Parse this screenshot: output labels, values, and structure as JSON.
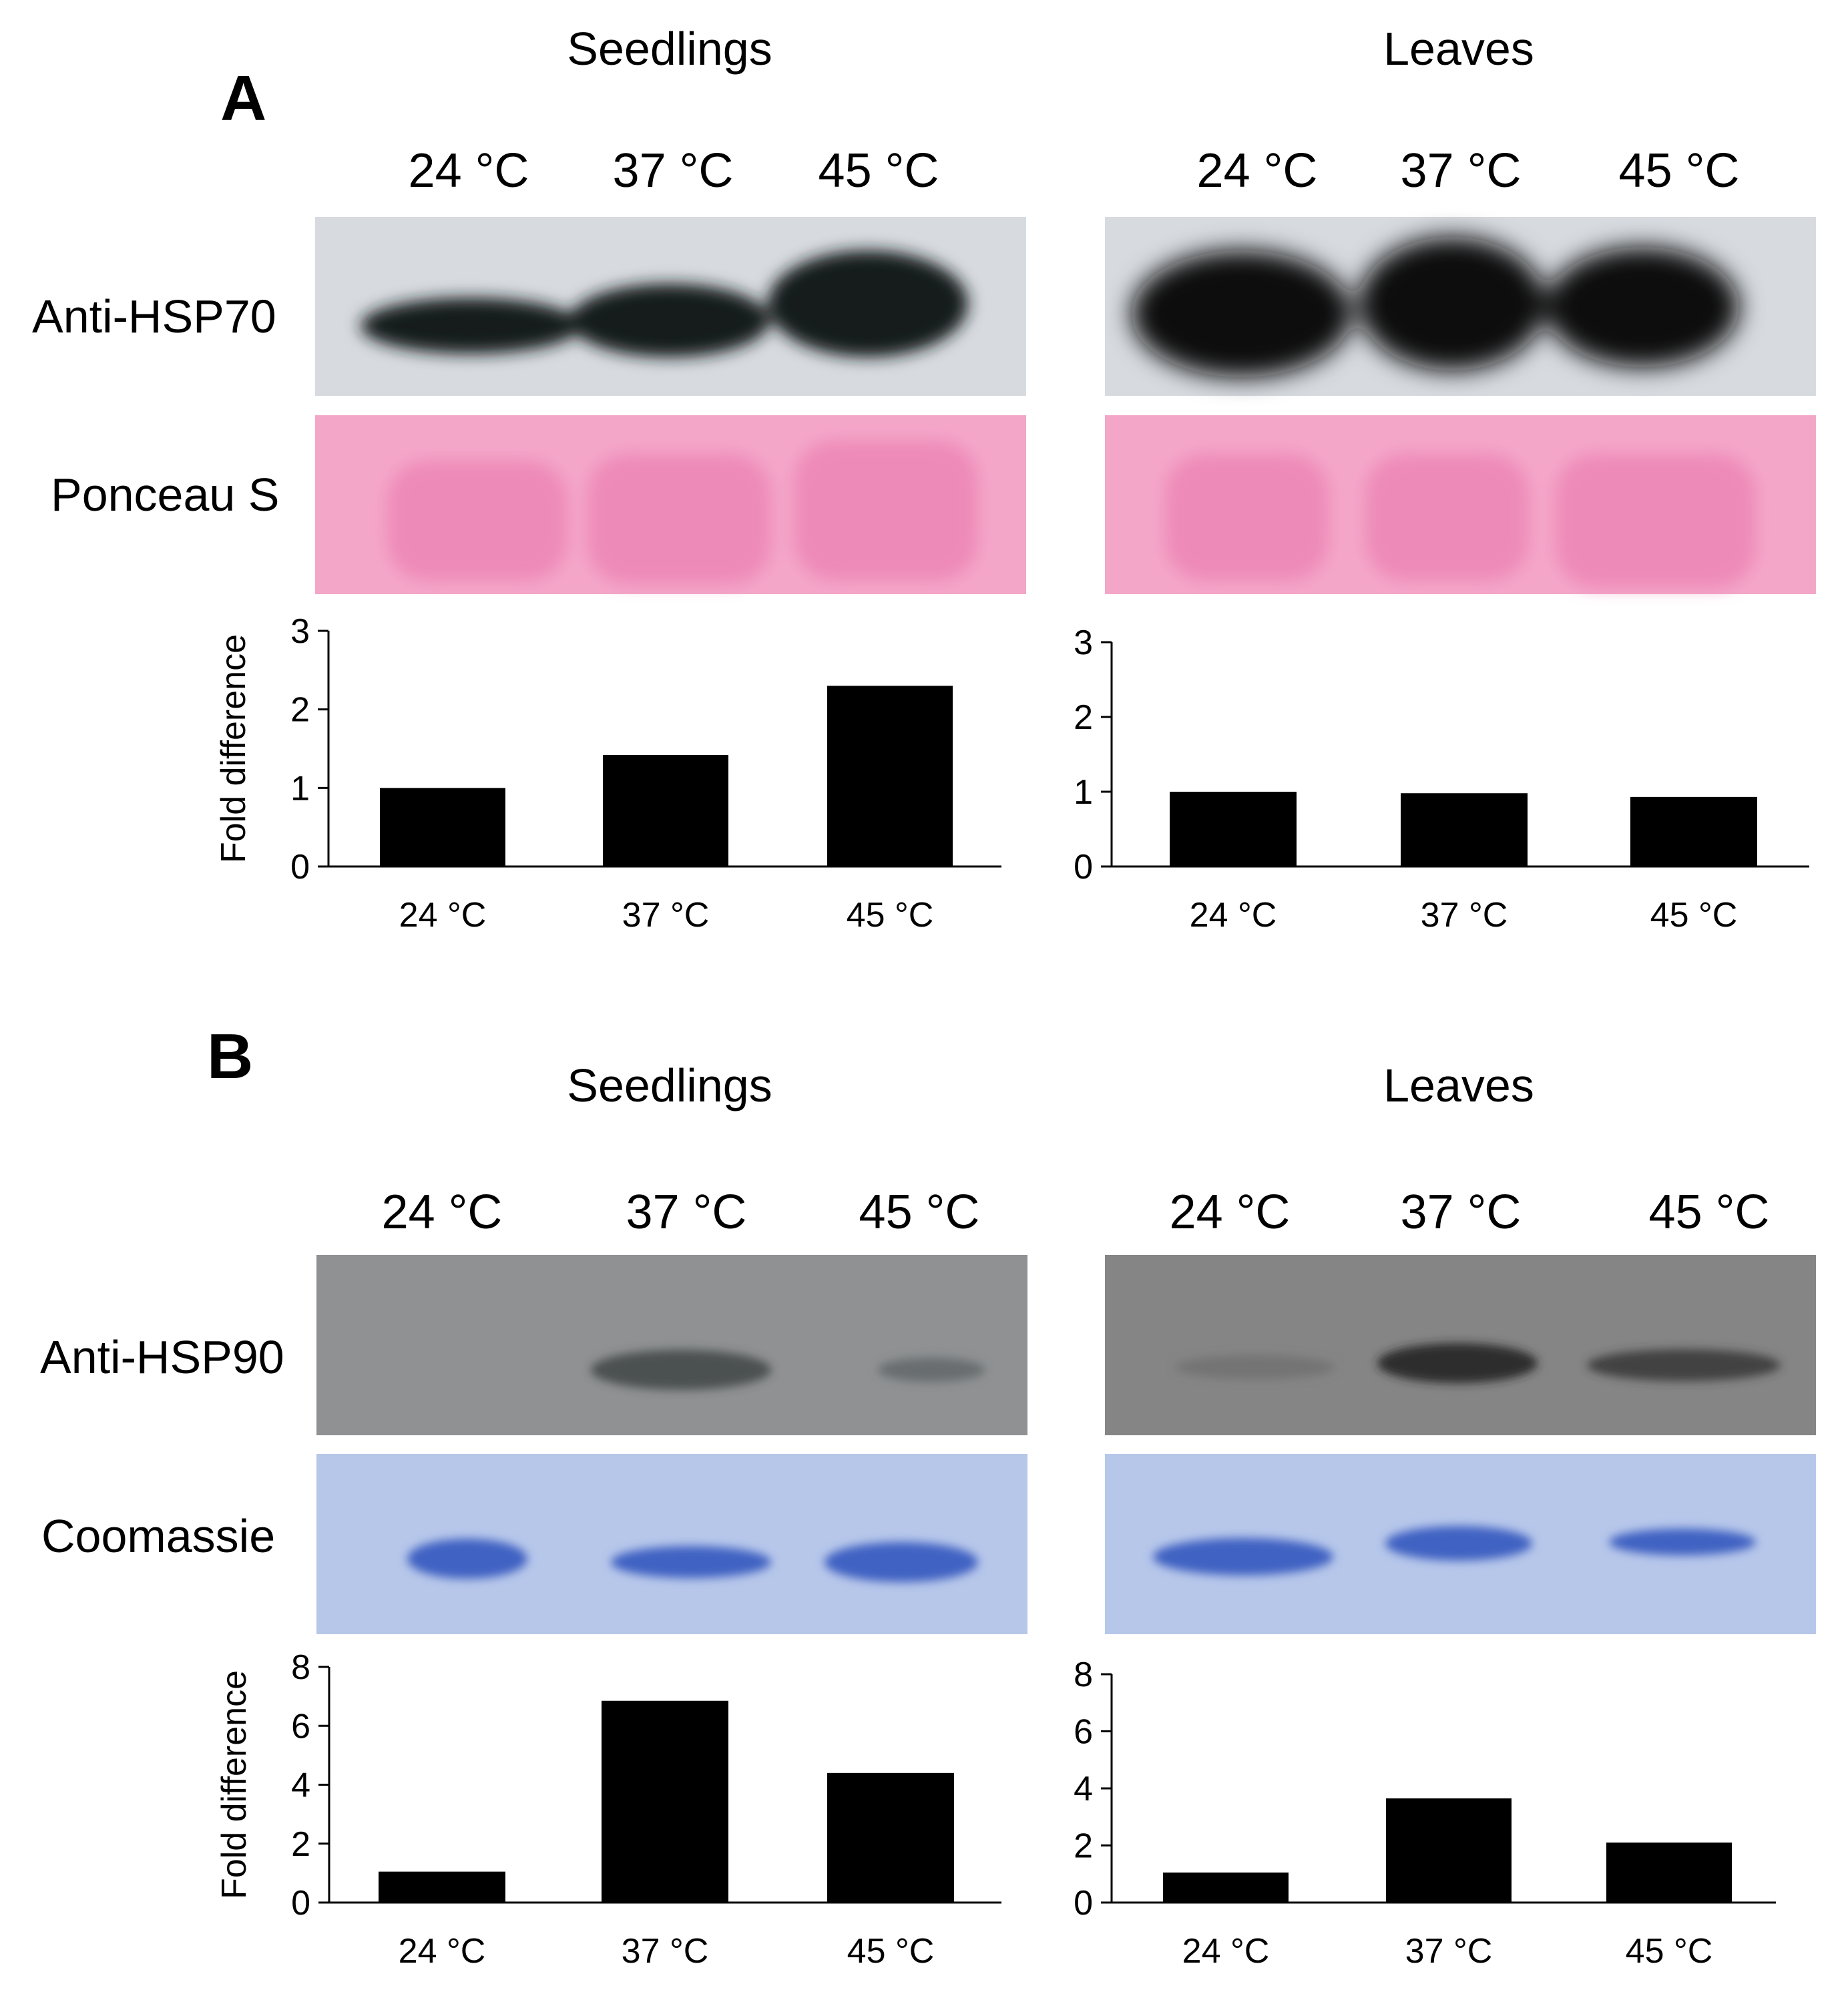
{
  "panels": [
    {
      "letter": "A",
      "tissues": [
        "Seedlings",
        "Leaves"
      ],
      "lane_labels": [
        "24 °C",
        "37 °C",
        "45 °C"
      ],
      "blot_label": "Anti-HSP70",
      "loading_label": "Ponceau S"
    },
    {
      "letter": "B",
      "tissues": [
        "Seedlings",
        "Leaves"
      ],
      "lane_labels": [
        "24 °C",
        "37 °C",
        "45 °C"
      ],
      "blot_label": "Anti-HSP90",
      "loading_label": "Coomassie"
    }
  ],
  "colors": {
    "bar": "#000000",
    "ponceau": "#f4a6c9",
    "ponceau_band": "#ee8ab8",
    "coomassie": "#b7c7ea",
    "coomassie_band": "#3f62c2",
    "hsp70_membrane": "#d7dbe0",
    "hsp90_membrane": "#8f9193",
    "hsp90_leaves_membrane": "#858585"
  },
  "chart_data": [
    {
      "type": "bar",
      "title": "A Seedlings",
      "categories": [
        "24 °C",
        "37 °C",
        "45 °C"
      ],
      "values": [
        1.0,
        1.42,
        2.3
      ],
      "ylabel": "Fold difference",
      "ylim": [
        0,
        3
      ],
      "yticks": [
        0,
        1,
        2,
        3
      ]
    },
    {
      "type": "bar",
      "title": "A Leaves",
      "categories": [
        "24 °C",
        "37 °C",
        "45 °C"
      ],
      "values": [
        1.0,
        0.98,
        0.93
      ],
      "ylabel": "",
      "ylim": [
        0,
        3
      ],
      "yticks": [
        0,
        1,
        2,
        3
      ]
    },
    {
      "type": "bar",
      "title": "B Seedlings",
      "categories": [
        "24 °C",
        "37 °C",
        "45 °C"
      ],
      "values": [
        1.05,
        6.85,
        4.4
      ],
      "ylabel": "Fold difference",
      "ylim": [
        0,
        8
      ],
      "yticks": [
        0,
        2,
        4,
        6,
        8
      ]
    },
    {
      "type": "bar",
      "title": "B Leaves",
      "categories": [
        "24 °C",
        "37 °C",
        "45 °C"
      ],
      "values": [
        1.05,
        3.65,
        2.1
      ],
      "ylabel": "",
      "ylim": [
        0,
        8
      ],
      "yticks": [
        0,
        2,
        4,
        6,
        8
      ]
    }
  ]
}
